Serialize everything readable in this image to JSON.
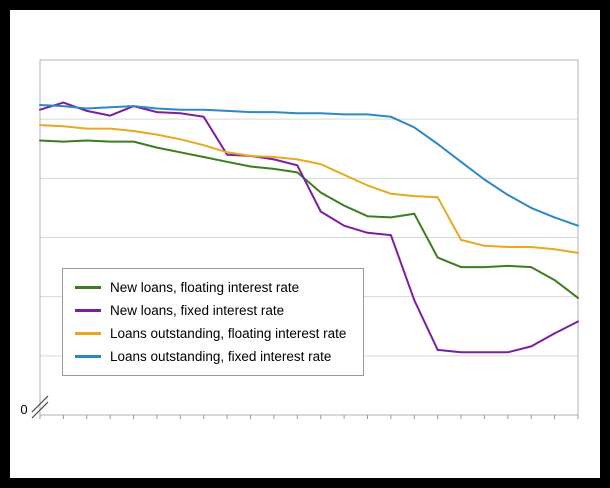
{
  "page": {
    "frame_color": "#000000",
    "panel_color": "#ffffff",
    "gridline_color": "#d9d9d9",
    "plot_border_color": "#b3b3b3",
    "tick_color": "#999999",
    "axis_break_color": "#444444"
  },
  "chart_data": {
    "type": "line",
    "title": "",
    "xlabel": "",
    "ylabel": "",
    "grid": "horizontal",
    "legend_position": "inside-left-center",
    "y_axis_zero_label": "0",
    "y_axis_break": true,
    "ylim": [
      1.0,
      4.0
    ],
    "gridline_step": 0.5,
    "x": [
      1,
      2,
      3,
      4,
      5,
      6,
      7,
      8,
      9,
      10,
      11,
      12,
      13,
      14,
      15,
      16,
      17,
      18,
      19,
      20,
      21,
      22,
      23,
      24
    ],
    "series": [
      {
        "name": "New loans, floating interest rate",
        "color": "#3e7d1d",
        "values": [
          3.32,
          3.31,
          3.32,
          3.31,
          3.31,
          3.26,
          3.22,
          3.18,
          3.14,
          3.1,
          3.08,
          3.05,
          2.88,
          2.77,
          2.68,
          2.67,
          2.7,
          2.33,
          2.25,
          2.25,
          2.26,
          2.25,
          2.14,
          1.99
        ]
      },
      {
        "name": "New loans, fixed interest rate",
        "color": "#7a1fa2",
        "values": [
          3.58,
          3.64,
          3.57,
          3.53,
          3.61,
          3.56,
          3.55,
          3.52,
          3.2,
          3.19,
          3.16,
          3.11,
          2.72,
          2.6,
          2.54,
          2.52,
          1.97,
          1.55,
          1.53,
          1.53,
          1.53,
          1.58,
          1.69,
          1.79
        ]
      },
      {
        "name": "Loans outstanding, floating interest rate",
        "color": "#e7a922",
        "values": [
          3.45,
          3.44,
          3.42,
          3.42,
          3.4,
          3.37,
          3.33,
          3.28,
          3.22,
          3.19,
          3.18,
          3.16,
          3.12,
          3.03,
          2.94,
          2.87,
          2.85,
          2.84,
          2.48,
          2.43,
          2.42,
          2.42,
          2.4,
          2.37
        ]
      },
      {
        "name": "Loans outstanding, fixed interest rate",
        "color": "#2d87c8",
        "values": [
          3.62,
          3.61,
          3.59,
          3.6,
          3.61,
          3.59,
          3.58,
          3.58,
          3.57,
          3.56,
          3.56,
          3.55,
          3.55,
          3.54,
          3.54,
          3.52,
          3.43,
          3.29,
          3.14,
          2.99,
          2.86,
          2.75,
          2.67,
          2.6
        ]
      }
    ]
  }
}
